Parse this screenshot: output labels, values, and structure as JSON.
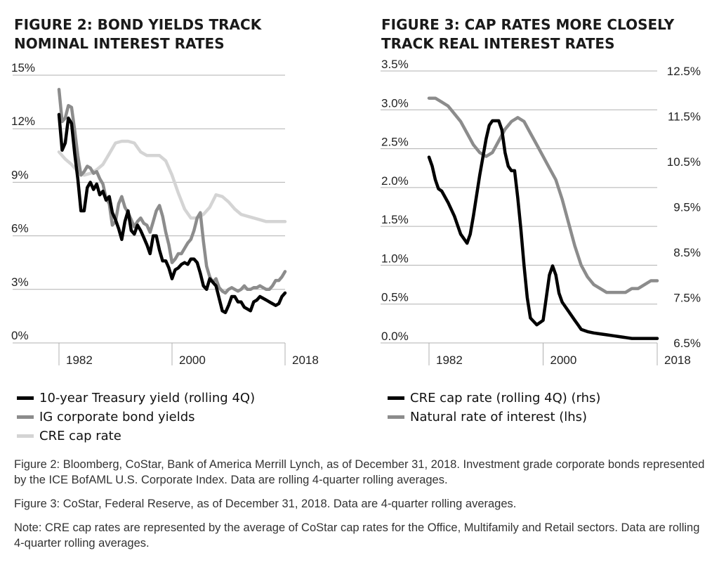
{
  "figures": [
    {
      "title_line1": "FIGURE 2: BOND YIELDS TRACK",
      "title_line2": "NOMINAL INTEREST RATES",
      "y_ticks": [
        "15%",
        "12%",
        "9%",
        "6%",
        "3%",
        "0%"
      ],
      "x_ticks": [
        "1982",
        "2000",
        "2018"
      ],
      "legend": [
        "10-year Treasury yield (rolling 4Q)",
        "IG corporate bond yields",
        "CRE cap rate"
      ]
    },
    {
      "title_line1": "FIGURE 3: CAP RATES MORE CLOSELY",
      "title_line2": "TRACK REAL INTEREST RATES",
      "y_ticks_left": [
        "3.5%",
        "3.0%",
        "2.5%",
        "2.0%",
        "1.5%",
        "1.0%",
        "0.5%",
        "0.0%"
      ],
      "y_ticks_right": [
        "12.5%",
        "11.5%",
        "10.5%",
        "9.5%",
        "8.5%",
        "7.5%",
        "6.5%"
      ],
      "x_ticks": [
        "1982",
        "2000",
        "2018"
      ],
      "legend": [
        "CRE cap rate (rolling 4Q) (rhs)",
        "Natural rate of interest (lhs)"
      ]
    }
  ],
  "notes": [
    "Figure 2: Bloomberg, CoStar, Bank of America Merrill Lynch, as of December 31, 2018. Investment grade corporate bonds represented by the ICE BofAML U.S. Corporate Index. Data are rolling 4-quarter rolling averages.",
    "Figure 3: CoStar, Federal Reserve, as of December 31, 2018. Data are 4-quarter rolling averages.",
    "Note: CRE cap rates are represented by the average of CoStar cap rates for the Office, Multifamily and Retail sectors. Data are rolling 4-quarter rolling averages."
  ],
  "colors": {
    "treasury": "#000000",
    "corporate": "#8c8c8c",
    "cre_light": "#d4d4d4",
    "cre_dark": "#000000",
    "natural": "#8c8c8c",
    "grid": "#b0b0b0"
  },
  "chart_data": [
    {
      "type": "line",
      "title": "FIGURE 2: BOND YIELDS TRACK NOMINAL INTEREST RATES",
      "xlim": [
        1982,
        2018
      ],
      "ylim": [
        0,
        15
      ],
      "y_ticks": [
        0,
        3,
        6,
        9,
        12,
        15
      ],
      "x_ticks": [
        1982,
        2000,
        2018
      ],
      "grid": true,
      "legend_position": "bottom",
      "series": [
        {
          "name": "10-year Treasury yield (rolling 4Q)",
          "color": "#000000",
          "x": [
            1982.0,
            1982.5,
            1983.0,
            1983.5,
            1984.0,
            1984.5,
            1985.0,
            1985.5,
            1986.0,
            1986.5,
            1987.0,
            1987.5,
            1988.0,
            1988.5,
            1989.0,
            1989.5,
            1990.0,
            1990.5,
            1991.0,
            1991.5,
            1992.0,
            1992.5,
            1993.0,
            1993.5,
            1994.0,
            1994.5,
            1995.0,
            1995.5,
            1996.0,
            1996.5,
            1997.0,
            1997.5,
            1998.0,
            1998.5,
            1999.0,
            1999.5,
            2000.0,
            2000.5,
            2001.0,
            2001.5,
            2002.0,
            2002.5,
            2003.0,
            2003.5,
            2004.0,
            2004.5,
            2005.0,
            2005.5,
            2006.0,
            2006.5,
            2007.0,
            2007.5,
            2008.0,
            2008.5,
            2009.0,
            2009.5,
            2010.0,
            2010.5,
            2011.0,
            2011.5,
            2012.0,
            2012.5,
            2013.0,
            2013.5,
            2014.0,
            2014.5,
            2015.0,
            2015.5,
            2016.0,
            2016.5,
            2017.0,
            2017.5,
            2018.0
          ],
          "values": [
            12.8,
            10.8,
            11.2,
            12.6,
            12.3,
            10.6,
            9.2,
            7.4,
            7.4,
            8.7,
            9.0,
            8.6,
            8.9,
            8.3,
            8.5,
            8.0,
            8.2,
            7.3,
            6.9,
            6.4,
            5.8,
            6.8,
            7.4,
            6.3,
            6.1,
            6.6,
            6.3,
            5.9,
            5.5,
            5.0,
            6.0,
            6.0,
            5.2,
            4.6,
            4.6,
            4.2,
            3.6,
            4.1,
            4.2,
            4.4,
            4.5,
            4.4,
            4.7,
            4.7,
            4.5,
            3.9,
            3.2,
            3.0,
            3.6,
            3.4,
            3.2,
            2.5,
            1.8,
            1.7,
            2.1,
            2.6,
            2.6,
            2.3,
            2.3,
            2.0,
            1.9,
            1.8,
            2.3,
            2.4,
            2.6,
            2.5,
            2.4,
            2.3,
            2.2,
            2.1,
            2.2,
            2.6,
            2.8
          ]
        },
        {
          "name": "IG corporate bond yields",
          "color": "#8c8c8c",
          "x": [
            1982.0,
            1982.5,
            1983.0,
            1983.5,
            1984.0,
            1984.5,
            1985.0,
            1985.5,
            1986.0,
            1986.5,
            1987.0,
            1987.5,
            1988.0,
            1988.5,
            1989.0,
            1989.5,
            1990.0,
            1990.5,
            1991.0,
            1991.5,
            1992.0,
            1992.5,
            1993.0,
            1993.5,
            1994.0,
            1994.5,
            1995.0,
            1995.5,
            1996.0,
            1996.5,
            1997.0,
            1997.5,
            1998.0,
            1998.5,
            1999.0,
            1999.5,
            2000.0,
            2000.5,
            2001.0,
            2001.5,
            2002.0,
            2002.5,
            2003.0,
            2003.5,
            2004.0,
            2004.5,
            2005.0,
            2005.5,
            2006.0,
            2006.5,
            2007.0,
            2007.5,
            2008.0,
            2008.5,
            2009.0,
            2009.5,
            2010.0,
            2010.5,
            2011.0,
            2011.5,
            2012.0,
            2012.5,
            2013.0,
            2013.5,
            2014.0,
            2014.5,
            2015.0,
            2015.5,
            2016.0,
            2016.5,
            2017.0,
            2017.5,
            2018.0
          ],
          "values": [
            14.2,
            12.4,
            12.6,
            13.3,
            13.2,
            11.9,
            10.5,
            9.4,
            9.6,
            9.9,
            9.8,
            9.5,
            9.6,
            9.2,
            8.9,
            8.1,
            7.8,
            6.6,
            6.8,
            7.8,
            8.2,
            7.6,
            7.3,
            6.9,
            6.5,
            6.8,
            7.0,
            6.7,
            6.6,
            6.2,
            6.8,
            7.4,
            7.7,
            7.1,
            6.2,
            5.5,
            4.5,
            4.7,
            5.0,
            5.0,
            5.3,
            5.6,
            5.8,
            6.3,
            7.0,
            7.3,
            5.7,
            4.3,
            3.7,
            3.4,
            3.6,
            3.1,
            2.9,
            2.8,
            3.0,
            3.1,
            3.0,
            2.9,
            3.0,
            3.2,
            3.0,
            3.0,
            3.1,
            3.1,
            3.2,
            3.1,
            3.0,
            3.0,
            3.2,
            3.5,
            3.5,
            3.7,
            4.0
          ]
        },
        {
          "name": "CRE cap rate",
          "color": "#d4d4d4",
          "x": [
            1982.0,
            1983.0,
            1984.0,
            1985.0,
            1986.0,
            1987.0,
            1988.0,
            1989.0,
            1990.0,
            1991.0,
            1992.0,
            1993.0,
            1994.0,
            1995.0,
            1996.0,
            1997.0,
            1998.0,
            1999.0,
            2000.0,
            2001.0,
            2002.0,
            2003.0,
            2004.0,
            2005.0,
            2006.0,
            2007.0,
            2008.0,
            2009.0,
            2010.0,
            2011.0,
            2012.0,
            2013.0,
            2014.0,
            2015.0,
            2016.0,
            2017.0,
            2018.0
          ],
          "values": [
            10.7,
            10.3,
            10.0,
            9.6,
            9.4,
            9.5,
            9.7,
            10.0,
            10.6,
            11.2,
            11.3,
            11.3,
            11.2,
            10.7,
            10.5,
            10.5,
            10.5,
            10.2,
            9.4,
            8.4,
            7.5,
            7.0,
            7.0,
            7.2,
            7.6,
            8.3,
            8.2,
            7.9,
            7.5,
            7.2,
            7.1,
            7.0,
            6.9,
            6.8,
            6.8,
            6.8,
            6.8
          ]
        }
      ]
    },
    {
      "type": "line",
      "title": "FIGURE 3: CAP RATES MORE CLOSELY TRACK REAL INTEREST RATES",
      "xlim": [
        1982,
        2018
      ],
      "ylim_left": [
        0,
        3.5
      ],
      "ylim_right": [
        6.5,
        12.5
      ],
      "y_ticks_left": [
        0,
        0.5,
        1.0,
        1.5,
        2.0,
        2.5,
        3.0,
        3.5
      ],
      "y_ticks_right": [
        6.5,
        7.5,
        8.5,
        9.5,
        10.5,
        11.5,
        12.5
      ],
      "x_ticks": [
        1982,
        2000,
        2018
      ],
      "grid": true,
      "legend_position": "bottom",
      "series": [
        {
          "name": "CRE cap rate (rolling 4Q) (rhs)",
          "axis": "right",
          "color": "#000000",
          "x": [
            1982.0,
            1982.5,
            1983.0,
            1983.5,
            1984.0,
            1985.0,
            1986.0,
            1987.0,
            1988.0,
            1988.5,
            1989.0,
            1990.0,
            1991.0,
            1991.5,
            1992.0,
            1992.5,
            1993.0,
            1993.5,
            1994.0,
            1994.5,
            1995.0,
            1995.5,
            1996.0,
            1996.5,
            1997.0,
            1997.5,
            1998.0,
            1999.0,
            2000.0,
            2000.5,
            2001.0,
            2001.5,
            2002.0,
            2002.5,
            2003.0,
            2003.5,
            2004.0,
            2004.5,
            2005.0,
            2005.5,
            2006.0,
            2007.0,
            2008.0,
            2009.0,
            2010.0,
            2011.0,
            2012.0,
            2013.0,
            2014.0,
            2015.0,
            2016.0,
            2017.0,
            2018.0
          ],
          "values": [
            10.6,
            10.4,
            10.1,
            9.9,
            9.85,
            9.6,
            9.3,
            8.9,
            8.7,
            8.9,
            9.3,
            10.2,
            11.0,
            11.3,
            11.4,
            11.4,
            11.4,
            11.2,
            10.7,
            10.4,
            10.3,
            10.3,
            9.7,
            9.0,
            8.2,
            7.5,
            7.05,
            6.9,
            7.0,
            7.5,
            8.0,
            8.2,
            8.0,
            7.6,
            7.4,
            7.3,
            7.2,
            7.1,
            7.0,
            6.9,
            6.8,
            6.75,
            6.72,
            6.7,
            6.68,
            6.66,
            6.64,
            6.62,
            6.6,
            6.6,
            6.6,
            6.6,
            6.6
          ]
        },
        {
          "name": "Natural rate of interest (lhs)",
          "axis": "left",
          "color": "#8c8c8c",
          "x": [
            1982.0,
            1983.0,
            1984.0,
            1985.0,
            1986.0,
            1987.0,
            1988.0,
            1989.0,
            1990.0,
            1991.0,
            1992.0,
            1993.0,
            1994.0,
            1995.0,
            1996.0,
            1997.0,
            1998.0,
            1999.0,
            2000.0,
            2001.0,
            2002.0,
            2003.0,
            2004.0,
            2005.0,
            2006.0,
            2007.0,
            2008.0,
            2009.0,
            2010.0,
            2011.0,
            2012.0,
            2013.0,
            2014.0,
            2015.0,
            2016.0,
            2017.0,
            2018.0
          ],
          "values": [
            3.15,
            3.15,
            3.1,
            3.05,
            2.95,
            2.85,
            2.7,
            2.55,
            2.45,
            2.4,
            2.45,
            2.6,
            2.75,
            2.85,
            2.9,
            2.85,
            2.7,
            2.55,
            2.4,
            2.25,
            2.1,
            1.85,
            1.55,
            1.25,
            1.0,
            0.85,
            0.75,
            0.7,
            0.65,
            0.65,
            0.65,
            0.65,
            0.7,
            0.7,
            0.75,
            0.8,
            0.8
          ]
        }
      ]
    }
  ]
}
